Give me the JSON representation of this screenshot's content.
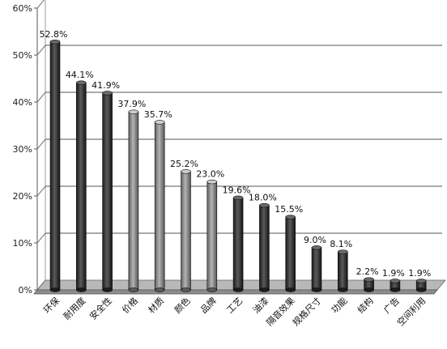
{
  "chart_data": {
    "type": "bar",
    "title": "",
    "xlabel": "",
    "ylabel": "",
    "ylim": [
      0,
      60
    ],
    "y_ticks": [
      "0%",
      "10%",
      "20%",
      "30%",
      "40%",
      "50%",
      "60%"
    ],
    "grid": true,
    "categories": [
      "环保",
      "耐用度",
      "安全性",
      "价格",
      "材质",
      "颜色",
      "品牌",
      "工艺",
      "油漆",
      "隔音效果",
      "规格尺寸",
      "功能",
      "结构",
      "广告",
      "空间利用"
    ],
    "values": [
      52.8,
      44.1,
      41.9,
      37.9,
      35.7,
      25.2,
      23.0,
      19.6,
      18.0,
      15.5,
      9.0,
      8.1,
      2.2,
      1.9,
      1.9
    ],
    "data_labels": [
      "52.8%",
      "44.1%",
      "41.9%",
      "37.9%",
      "35.7%",
      "25.2%",
      "23.0%",
      "19.6%",
      "18.0%",
      "15.5%",
      "9.0%",
      "8.1%",
      "2.2%",
      "1.9%",
      "1.9%"
    ],
    "bar_colors": [
      "#2f2f2f",
      "#2f2f2f",
      "#2f2f2f",
      "#8a8a8a",
      "#8a8a8a",
      "#8a8a8a",
      "#8a8a8a",
      "#2f2f2f",
      "#2f2f2f",
      "#2f2f2f",
      "#2f2f2f",
      "#2f2f2f",
      "#2f2f2f",
      "#2f2f2f",
      "#2f2f2f"
    ]
  }
}
